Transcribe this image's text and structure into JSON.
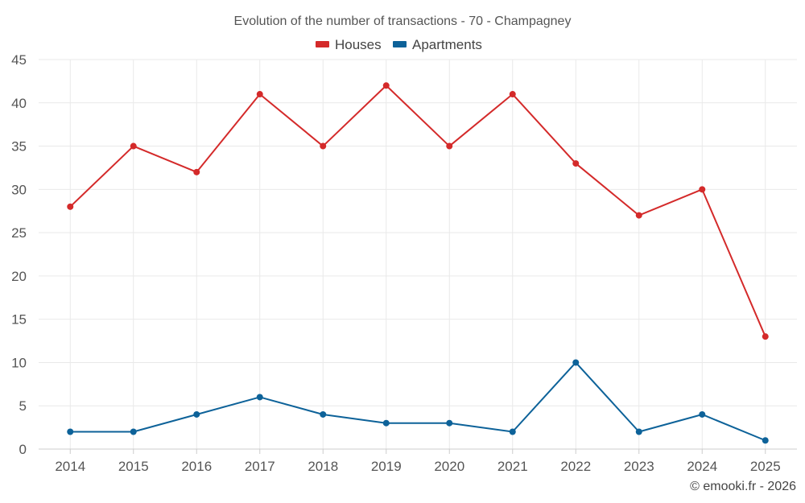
{
  "chart_data": {
    "type": "line",
    "title": "Evolution of the number of transactions - 70 - Champagney",
    "xlabel": "",
    "ylabel": "",
    "categories": [
      "2014",
      "2015",
      "2016",
      "2017",
      "2018",
      "2019",
      "2020",
      "2021",
      "2022",
      "2023",
      "2024",
      "2025"
    ],
    "ylim": [
      0,
      45
    ],
    "yticks": [
      0,
      5,
      10,
      15,
      20,
      25,
      30,
      35,
      40,
      45
    ],
    "grid": true,
    "legend_position": "top-center",
    "series": [
      {
        "name": "Houses",
        "color": "#d42a2a",
        "values": [
          28,
          35,
          32,
          41,
          35,
          42,
          35,
          41,
          33,
          27,
          30,
          13
        ]
      },
      {
        "name": "Apartments",
        "color": "#0d6299",
        "values": [
          2,
          2,
          4,
          6,
          4,
          3,
          3,
          2,
          10,
          2,
          4,
          1
        ]
      }
    ]
  },
  "credit": "© emooki.fr - 2026"
}
